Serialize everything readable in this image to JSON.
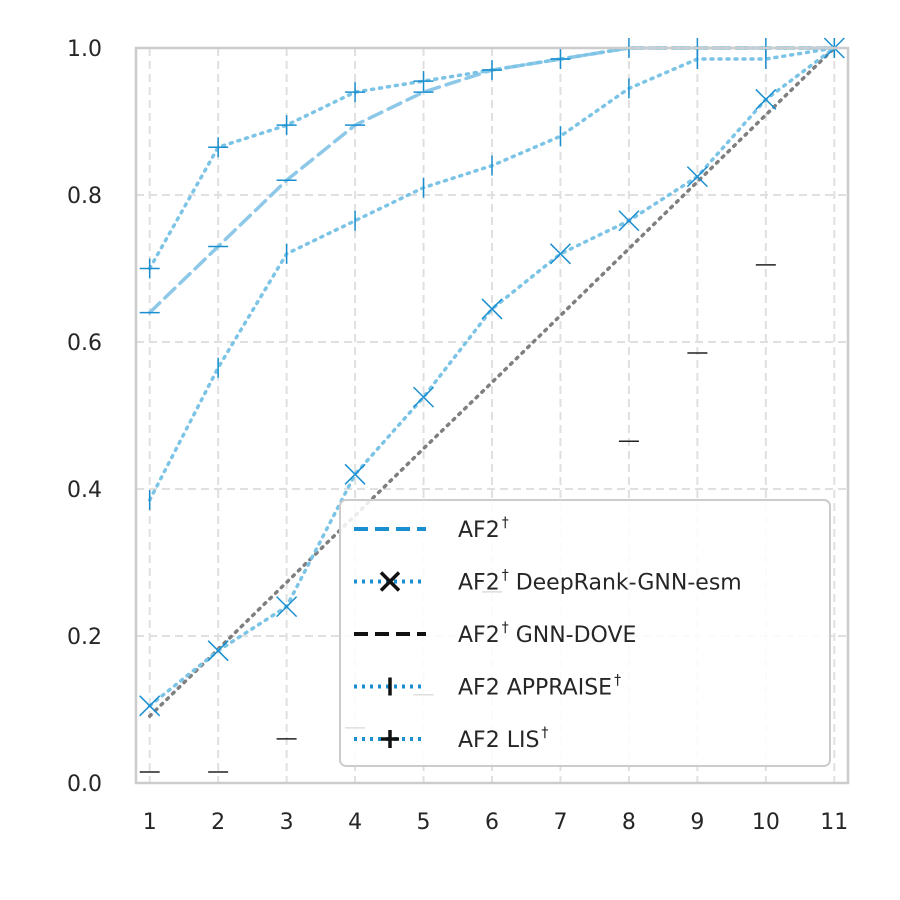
{
  "chart_data": {
    "type": "line",
    "x": [
      1,
      2,
      3,
      4,
      5,
      6,
      7,
      8,
      9,
      10,
      11
    ],
    "xticks": [
      "1",
      "2",
      "3",
      "4",
      "5",
      "6",
      "7",
      "8",
      "9",
      "10",
      "11"
    ],
    "yticks": [
      "0.0",
      "0.2",
      "0.4",
      "0.6",
      "0.8",
      "1.0"
    ],
    "ylim": [
      0,
      1
    ],
    "xlim": [
      0.8,
      11.2
    ],
    "grid": true,
    "legend_position": "lower-right",
    "baseline": {
      "style": "dotted",
      "color": "#7f7f7f",
      "values": [
        0.091,
        0.182,
        0.273,
        0.364,
        0.455,
        0.545,
        0.636,
        0.727,
        0.818,
        0.909,
        1.0
      ]
    },
    "series": [
      {
        "name": "AF2",
        "sup": "†",
        "style": "dashed",
        "color": "#8ec8e8",
        "marker": "hline",
        "values": [
          0.64,
          0.73,
          0.82,
          0.895,
          0.94,
          0.97,
          0.985,
          1.0,
          1.0,
          1.0,
          1.0
        ]
      },
      {
        "name": "AF2",
        "sup": "†",
        "name_suffix": " DeepRank-GNN-esm",
        "style": "dotted",
        "color": "#7cc4e6",
        "marker": "x",
        "values": [
          0.105,
          0.18,
          0.24,
          0.42,
          0.525,
          0.645,
          0.72,
          0.765,
          0.825,
          0.93,
          1.0
        ]
      },
      {
        "name": "AF2",
        "sup": "†",
        "name_suffix": " GNN-DOVE",
        "style": "none",
        "color": "#222222",
        "marker": "hline",
        "values": [
          0.015,
          0.015,
          0.06,
          0.075,
          0.12,
          0.26,
          0.385,
          0.465,
          0.585,
          0.705,
          1.0
        ]
      },
      {
        "name": "AF2 APPRAISE",
        "sup": "†",
        "style": "dotted",
        "color": "#7cc4e6",
        "marker": "vline",
        "values": [
          0.385,
          0.565,
          0.72,
          0.765,
          0.81,
          0.84,
          0.88,
          0.945,
          0.985,
          0.985,
          1.0
        ]
      },
      {
        "name": "AF2 LIS",
        "sup": "†",
        "style": "dotted",
        "color": "#7cc4e6",
        "marker": "plus",
        "values": [
          0.7,
          0.865,
          0.895,
          0.94,
          0.955,
          0.97,
          0.985,
          1.0,
          1.0,
          1.0,
          1.0
        ]
      }
    ]
  }
}
